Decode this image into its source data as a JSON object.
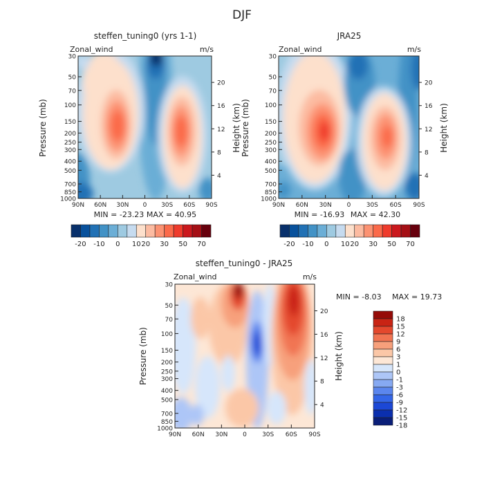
{
  "page_title": "DJF",
  "colors": {
    "blue_to_red_top": [
      "#08306b",
      "#08519c",
      "#2171b5",
      "#4292c6",
      "#6baed6",
      "#9ecae1",
      "#c6dbef",
      "#fde0cc",
      "#fcbba1",
      "#fc9272",
      "#fb6a4a",
      "#ef3b2c",
      "#cb181d",
      "#a50f15",
      "#67000d"
    ],
    "diff_scale": [
      "#0a1e78",
      "#0b2fae",
      "#1c48d6",
      "#3466e8",
      "#5b86ee",
      "#86a9f2",
      "#adc6f7",
      "#d6e6fb",
      "#fde7d6",
      "#fbc7a7",
      "#f7a07b",
      "#f17452",
      "#e4482d",
      "#c92414",
      "#950b08"
    ]
  },
  "chart_data": [
    {
      "id": "model",
      "type": "heatmap",
      "title": "steffen_tuning0 (yrs 1-1)",
      "variable": "Zonal_wind",
      "units": "m/s",
      "xlabel": "",
      "ylabel": "Pressure (mb)",
      "ylabel_right": "Height (km)",
      "x_ticks": [
        "90N",
        "60N",
        "30N",
        "0",
        "30S",
        "60S",
        "90S"
      ],
      "y_ticks": [
        "30",
        "50",
        "70",
        "100",
        "150",
        "200",
        "250",
        "300",
        "400",
        "500",
        "700",
        "850",
        "1000"
      ],
      "height_ticks": [
        "20",
        "16",
        "12",
        "8",
        "4"
      ],
      "min_text": "MIN = -23.23",
      "max_text": "MAX = 40.95",
      "min": -23.23,
      "max": 40.95,
      "colorbar_labels": [
        "-20",
        "-10",
        "0",
        "10",
        "20",
        "30",
        "50",
        "70"
      ],
      "colorbar_levels": [
        -20,
        -15,
        -10,
        -5,
        0,
        5,
        10,
        15,
        20,
        25,
        30,
        40,
        50,
        60,
        70
      ]
    },
    {
      "id": "obs",
      "type": "heatmap",
      "title": "JRA25",
      "variable": "Zonal_wind",
      "units": "m/s",
      "xlabel": "",
      "ylabel": "Pressure (mb)",
      "ylabel_right": "Height (km)",
      "x_ticks": [
        "90N",
        "60N",
        "30N",
        "0",
        "30S",
        "60S",
        "90S"
      ],
      "y_ticks": [
        "30",
        "50",
        "70",
        "100",
        "150",
        "200",
        "250",
        "300",
        "400",
        "500",
        "700",
        "850",
        "1000"
      ],
      "height_ticks": [
        "20",
        "16",
        "12",
        "8",
        "4"
      ],
      "min_text": "MIN = -16.93",
      "max_text": "MAX = 42.30",
      "min": -16.93,
      "max": 42.3,
      "colorbar_labels": [
        "-20",
        "-10",
        "0",
        "10",
        "20",
        "30",
        "50",
        "70"
      ],
      "colorbar_levels": [
        -20,
        -15,
        -10,
        -5,
        0,
        5,
        10,
        15,
        20,
        25,
        30,
        40,
        50,
        60,
        70
      ]
    },
    {
      "id": "diff",
      "type": "heatmap",
      "title": "steffen_tuning0 - JRA25",
      "variable": "Zonal_wind",
      "units": "m/s",
      "xlabel": "",
      "ylabel": "Pressure (mb)",
      "ylabel_right": "Height (km)",
      "x_ticks": [
        "90N",
        "60N",
        "30N",
        "0",
        "30S",
        "60S",
        "90S"
      ],
      "y_ticks": [
        "30",
        "50",
        "70",
        "100",
        "150",
        "200",
        "250",
        "300",
        "400",
        "500",
        "700",
        "850",
        "1000"
      ],
      "height_ticks": [
        "20",
        "16",
        "12",
        "8",
        "4"
      ],
      "min_text": "MIN =   -8.03",
      "max_text": "MAX =  19.73",
      "min": -8.03,
      "max": 19.73,
      "colorbar_labels": [
        "18",
        "15",
        "12",
        "9",
        "6",
        "3",
        "1",
        "0",
        "-1",
        "-3",
        "-6",
        "-9",
        "-12",
        "-15",
        "-18"
      ]
    }
  ]
}
